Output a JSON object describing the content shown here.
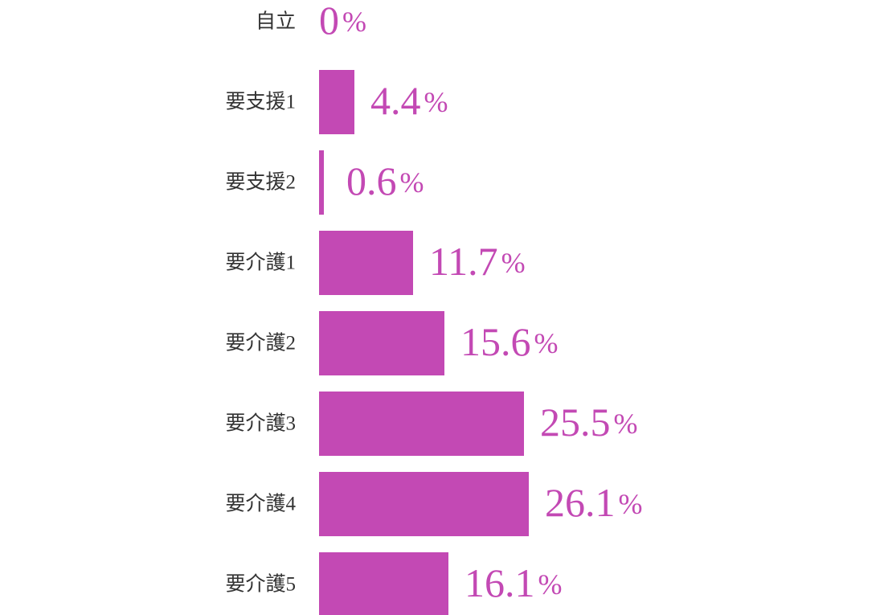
{
  "chart_data": {
    "type": "hbar",
    "categories": [
      "自立",
      "要支援1",
      "要支援2",
      "要介護1",
      "要介護2",
      "要介護3",
      "要介護4",
      "要介護5"
    ],
    "values": [
      0,
      4.4,
      0.6,
      11.7,
      15.6,
      25.5,
      26.1,
      16.1
    ],
    "value_labels": [
      "0%",
      "4.4%",
      "0.6%",
      "11.7%",
      "15.6%",
      "25.5%",
      "26.1%",
      "16.1%"
    ],
    "color": "#c349b4"
  }
}
